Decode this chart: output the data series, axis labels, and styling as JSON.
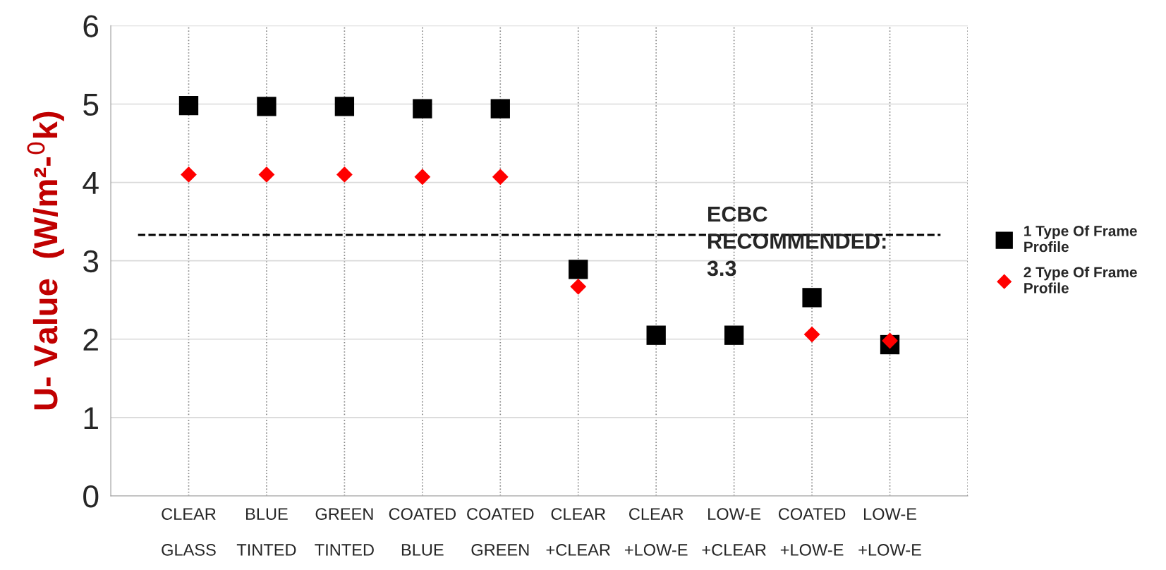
{
  "chart_data": {
    "type": "scatter",
    "ylabel": "U- Value  (W/m²-$^{0}$k)",
    "categories": [
      "CLEAR\n\nGLASS",
      "BLUE\n\nTINTED",
      "GREEN\n\nTINTED",
      "COATED\n\nBLUE",
      "COATED\n\nGREEN",
      "CLEAR\n\n+CLEAR",
      "CLEAR\n\n+LOW-E",
      "LOW-E\n\n+CLEAR",
      "COATED\n\n+LOW-E",
      "LOW-E\n\n+LOW-E"
    ],
    "series": [
      {
        "name": "1 Type Of Frame Profile",
        "color": "#000000",
        "marker": "square",
        "values": [
          4.98,
          4.97,
          4.97,
          4.94,
          4.94,
          2.89,
          2.05,
          2.05,
          2.53,
          1.93
        ]
      },
      {
        "name": "2 Type Of Frame Profile",
        "color": "#ff0000",
        "marker": "diamond",
        "values": [
          4.1,
          4.1,
          4.1,
          4.07,
          4.07,
          2.67,
          null,
          null,
          2.06,
          1.98
        ]
      }
    ],
    "ref_lines": [
      {
        "axis": "y",
        "value": 3.33,
        "label": "ECBC\nRECOMMENDED:\n3.3",
        "color": "#000000",
        "line_style": "dashed"
      }
    ],
    "ylim": [
      0,
      6
    ],
    "yticks": [
      0,
      1,
      2,
      3,
      4,
      5,
      6
    ],
    "grid": true,
    "legend": "right"
  }
}
